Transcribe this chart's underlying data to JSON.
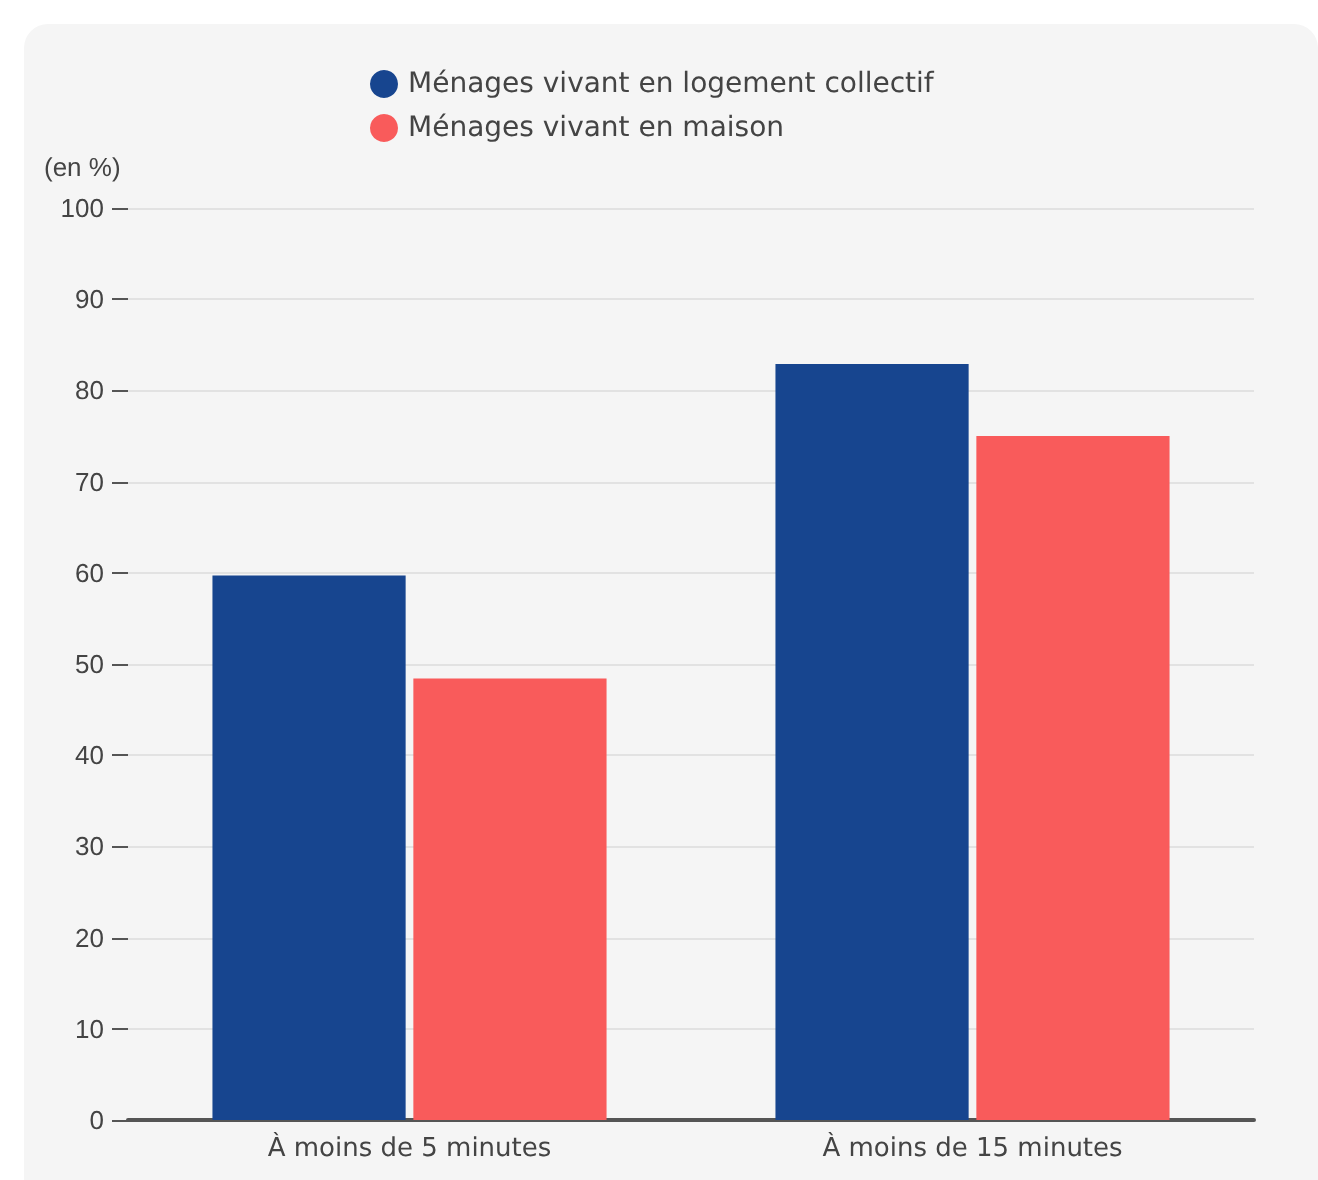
{
  "chart_data": {
    "type": "bar",
    "ylabel": "(en %)",
    "categories": [
      "À moins de 5 minutes",
      "À moins de 15 minutes"
    ],
    "series": [
      {
        "name": "Ménages vivant en logement collectif",
        "color": "#17458f",
        "values": [
          59.7,
          82.9
        ]
      },
      {
        "name": "Ménages vivant en maison",
        "color": "#f95b5b",
        "values": [
          48.4,
          75
        ]
      }
    ],
    "ylim": [
      0,
      100
    ],
    "yticks": [
      0,
      10,
      20,
      30,
      40,
      50,
      60,
      70,
      80,
      90,
      100
    ],
    "grid": "y",
    "legend": "top"
  }
}
